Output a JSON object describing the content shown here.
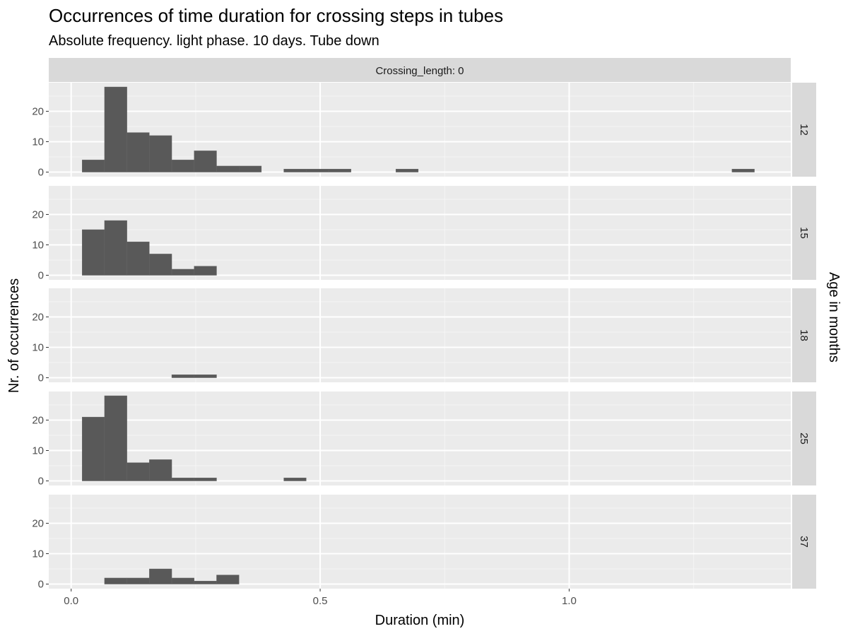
{
  "chart_data": {
    "type": "bar",
    "title": "Occurrences of time duration for crossing steps in tubes",
    "subtitle": "Absolute frequency. light phase. 10 days. Tube down",
    "xlabel": "Duration (min)",
    "ylabel": "Nr. of occurrences",
    "facet_column_label": "Crossing_length: 0",
    "facet_row_title": "Age in months",
    "xlim": [
      -0.045,
      1.445
    ],
    "ylim": [
      -1.5,
      29.4
    ],
    "x_ticks": [
      "0.0",
      "0.5",
      "1.0"
    ],
    "y_ticks": [
      "0",
      "10",
      "20"
    ],
    "bin_width": 0.045,
    "bin_start": 0.022,
    "grid": true,
    "color": "#595959",
    "panels": [
      {
        "label": "12",
        "bins": [
          {
            "x": 0.022,
            "count": 4
          },
          {
            "x": 0.067,
            "count": 28
          },
          {
            "x": 0.112,
            "count": 13
          },
          {
            "x": 0.157,
            "count": 12
          },
          {
            "x": 0.202,
            "count": 4
          },
          {
            "x": 0.247,
            "count": 7
          },
          {
            "x": 0.292,
            "count": 2
          },
          {
            "x": 0.337,
            "count": 2
          },
          {
            "x": 0.427,
            "count": 1
          },
          {
            "x": 0.472,
            "count": 1
          },
          {
            "x": 0.517,
            "count": 1
          },
          {
            "x": 0.652,
            "count": 1
          },
          {
            "x": 1.327,
            "count": 1
          }
        ]
      },
      {
        "label": "15",
        "bins": [
          {
            "x": 0.022,
            "count": 15
          },
          {
            "x": 0.067,
            "count": 18
          },
          {
            "x": 0.112,
            "count": 11
          },
          {
            "x": 0.157,
            "count": 7
          },
          {
            "x": 0.202,
            "count": 2
          },
          {
            "x": 0.247,
            "count": 3
          }
        ]
      },
      {
        "label": "18",
        "bins": [
          {
            "x": 0.202,
            "count": 1
          },
          {
            "x": 0.247,
            "count": 1
          }
        ]
      },
      {
        "label": "25",
        "bins": [
          {
            "x": 0.022,
            "count": 21
          },
          {
            "x": 0.067,
            "count": 28
          },
          {
            "x": 0.112,
            "count": 6
          },
          {
            "x": 0.157,
            "count": 7
          },
          {
            "x": 0.202,
            "count": 1
          },
          {
            "x": 0.247,
            "count": 1
          },
          {
            "x": 0.427,
            "count": 1
          }
        ]
      },
      {
        "label": "37",
        "bins": [
          {
            "x": 0.067,
            "count": 2
          },
          {
            "x": 0.112,
            "count": 2
          },
          {
            "x": 0.157,
            "count": 5
          },
          {
            "x": 0.202,
            "count": 2
          },
          {
            "x": 0.247,
            "count": 1
          },
          {
            "x": 0.292,
            "count": 3
          }
        ]
      }
    ]
  }
}
